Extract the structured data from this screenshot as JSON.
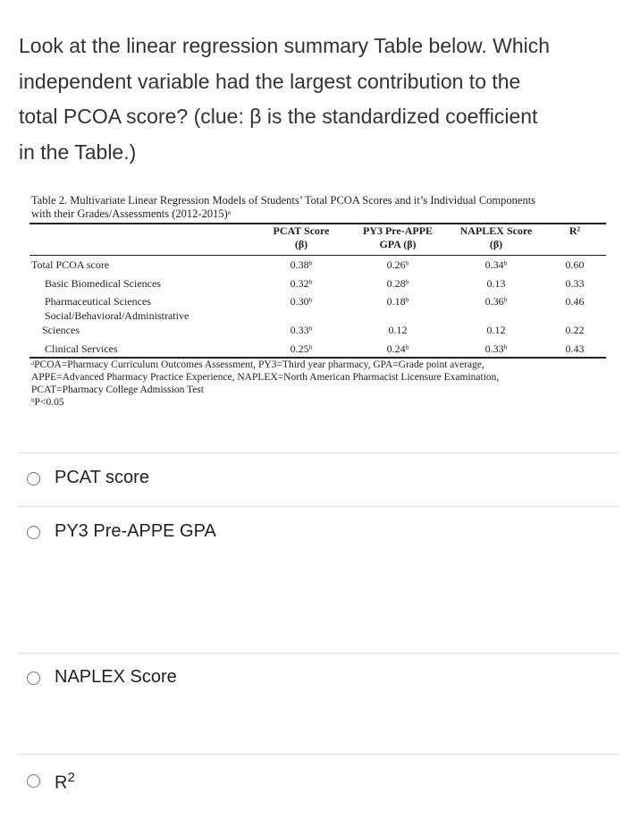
{
  "question": {
    "lines": [
      "Look at the linear regression summary Table below.  Which",
      "independent variable had the largest contribution to the",
      "total PCOA score? (clue:  β is the standardized coefficient",
      "in the Table.)"
    ]
  },
  "table": {
    "caption": [
      "Table 2. Multivariate Linear Regression Models of Students’ Total PCOA Scores and it’s Individual Components",
      "with their Grades/Assessments (2012-2015)ᵃ"
    ],
    "headers": [
      [
        "PCAT Score",
        "(β)"
      ],
      [
        "PY3 Pre-APPE",
        "GPA (β)"
      ],
      [
        "NAPLEX Score",
        "(β)"
      ],
      [
        "R²"
      ]
    ],
    "rows": [
      {
        "label": [
          "Total PCOA score"
        ],
        "cells": [
          "0.38ᵇ",
          "0.26ᵇ",
          "0.34ᵇ",
          "0.60"
        ]
      },
      {
        "label": [
          "Basic Biomedical Sciences"
        ],
        "cells": [
          "0.32ᵇ",
          "0.28ᵇ",
          "0.13",
          "0.33"
        ]
      },
      {
        "label": [
          "Pharmaceutical Sciences"
        ],
        "cells": [
          "0.30ᵇ",
          "0.18ᵇ",
          "0.36ᵇ",
          "0.46"
        ]
      },
      {
        "label": [
          "Social/Behavioral/Administrative",
          "Sciences"
        ],
        "cells": [
          "0.33ᵇ",
          "0.12",
          "0.12",
          "0.22"
        ]
      },
      {
        "label": [
          "Clinical Services"
        ],
        "cells": [
          "0.25ᵇ",
          "0.24ᵇ",
          "0.33ᵇ",
          "0.43"
        ]
      }
    ],
    "footnotes": [
      "ᵃPCOA=Pharmacy Curriculum Outcomes Assessment, PY3=Third year pharmacy, GPA=Grade point average,",
      "APPE=Advanced Pharmacy Practice Experience, NAPLEX=North American Pharmacist Licensure Examination,",
      "PCAT=Pharmacy College Admission Test",
      "ᵇP<0.05"
    ]
  },
  "options": [
    {
      "text": "PCAT score"
    },
    {
      "text": "PY3 Pre-APPE GPA"
    },
    {
      "text": "NAPLEX Score"
    },
    {
      "text": "R",
      "sup": "2"
    }
  ]
}
